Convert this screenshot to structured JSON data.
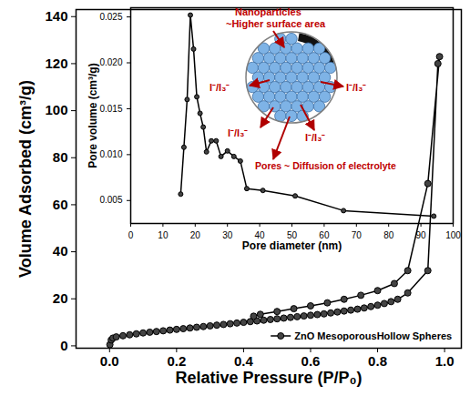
{
  "chart_data": [
    {
      "type": "line",
      "x_label": "Relative Pressure (P/P₀)",
      "y_label": "Volume Adsorbed (cm³/g)",
      "xlim": [
        -0.1,
        1.05
      ],
      "ylim": [
        -1,
        143
      ],
      "xticks": [
        {
          "value": 0,
          "label": "0.0"
        },
        0.2,
        0.4,
        0.6,
        0.8,
        {
          "value": 1,
          "label": "1.0"
        }
      ],
      "yticks": [
        0,
        20,
        40,
        60,
        80,
        100,
        120,
        140
      ],
      "legend": "lower right",
      "x": [
        0.001,
        0.005,
        0.01,
        0.02,
        0.04,
        0.06,
        0.08,
        0.1,
        0.12,
        0.14,
        0.16,
        0.18,
        0.2,
        0.22,
        0.24,
        0.26,
        0.28,
        0.3,
        0.32,
        0.34,
        0.36,
        0.38,
        0.4,
        0.42,
        0.44,
        0.46,
        0.48,
        0.5,
        0.52,
        0.54,
        0.56,
        0.58,
        0.6,
        0.62,
        0.64,
        0.66,
        0.68,
        0.7,
        0.72,
        0.74,
        0.76,
        0.78,
        0.8,
        0.82,
        0.84,
        0.86,
        0.89,
        0.95,
        0.98,
        0.985,
        0.95,
        0.89,
        0.85,
        0.8,
        0.75,
        0.7,
        0.65,
        0.6,
        0.55,
        0.5,
        0.45,
        0.43
      ],
      "series": [
        {
          "name": "ZnO MesoporousHollow Spheres",
          "color": "#000000",
          "marker": "circle",
          "values": [
            0.5,
            2.5,
            3.3,
            3.8,
            4.3,
            4.7,
            5.1,
            5.5,
            5.8,
            6.1,
            6.4,
            6.7,
            7.0,
            7.3,
            7.6,
            7.9,
            8.2,
            8.5,
            8.8,
            9.1,
            9.4,
            9.7,
            10.0,
            10.3,
            10.6,
            10.9,
            11.2,
            11.5,
            11.8,
            12.1,
            12.4,
            12.7,
            13.0,
            13.3,
            13.6,
            14.0,
            14.4,
            14.8,
            15.2,
            15.6,
            16.1,
            16.7,
            17.3,
            18.0,
            18.8,
            19.8,
            22.5,
            32,
            120,
            123,
            69,
            32,
            26.5,
            23.5,
            21.5,
            19.8,
            18.3,
            17,
            15.8,
            14.6,
            13.4,
            12.6
          ]
        }
      ]
    },
    {
      "type": "line",
      "x_label": "Pore diameter (nm)",
      "y_label": "Pore volume (cm³/g)",
      "xlim": [
        0,
        100
      ],
      "ylim": [
        0.0025,
        0.026
      ],
      "xticks": [
        0,
        10,
        20,
        30,
        40,
        50,
        60,
        70,
        80,
        90,
        100
      ],
      "yticks": [
        {
          "value": 0.005,
          "label": "0.005"
        },
        {
          "value": 0.01,
          "label": "0.010"
        },
        {
          "value": 0.015,
          "label": "0.015"
        },
        {
          "value": 0.02,
          "label": "0.020"
        },
        {
          "value": 0.025,
          "label": "0.025"
        }
      ],
      "x": [
        15.5,
        16.5,
        17.5,
        18.5,
        19.5,
        20.5,
        21.5,
        22.5,
        23.5,
        25,
        26.5,
        28,
        30,
        32,
        34,
        36,
        41,
        51,
        66,
        94
      ],
      "series": [
        {
          "color": "#000000",
          "marker": "circle",
          "values": [
            0.0057,
            0.0108,
            0.016,
            0.0252,
            0.0215,
            0.0163,
            0.0145,
            0.013,
            0.0103,
            0.0115,
            0.0115,
            0.0098,
            0.0104,
            0.0098,
            0.0093,
            0.0063,
            0.0061,
            0.0055,
            0.0039,
            0.0033
          ]
        }
      ],
      "annotations": [
        "Nanoparticles",
        "~Higher surface area",
        "I⁻/I₃⁻",
        "I⁻/I₃⁻",
        "I⁻/I₃⁻",
        "I⁻/I₃⁻",
        "Pores ~ Diffusion of electrolyte"
      ]
    }
  ]
}
